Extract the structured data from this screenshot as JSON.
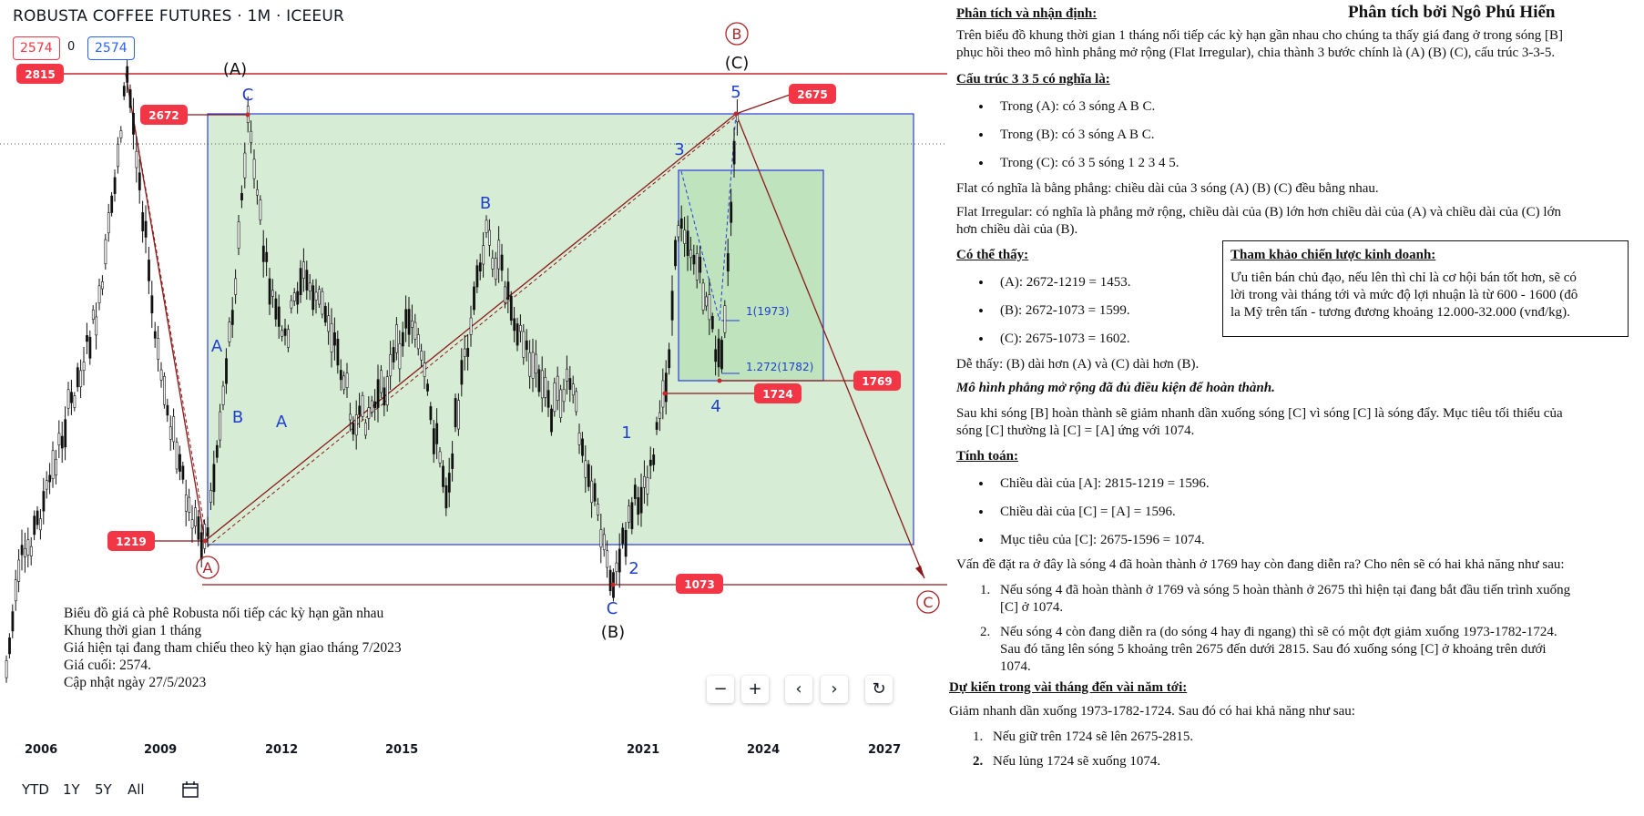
{
  "chart": {
    "symbol_title": "ROBUSTA COFFEE FUTURES · 1M · ICEEUR",
    "price_sell": "2574",
    "price_spread": "0",
    "price_buy": "2574",
    "colors": {
      "up": "#111111",
      "line": "#8b1a1a",
      "box": "#2b3bd9",
      "fill": "#d7ecd5",
      "fill2": "#bfe3bd",
      "label_bg": "#f23645",
      "wave_blue": "#1f3fcf"
    },
    "price_labels": [
      "2815",
      "2672",
      "2675",
      "1769",
      "1724",
      "1219",
      "1073"
    ],
    "wave_labels": {
      "A_top": "(A)",
      "C_top": "C",
      "B_mid": "B",
      "A_left": "A",
      "B_left": "B",
      "A_mid": "A",
      "circled_B": "B",
      "C_paren": "(C)",
      "w5": "5",
      "w3": "3",
      "w1": "1",
      "w2": "2",
      "w4": "4",
      "fib1": "1(1973)",
      "fib2": "1.272(1782)",
      "circled_A": "A",
      "C_bottom": "C",
      "B_bottom": "(B)",
      "circled_C": "C"
    },
    "note_lines": [
      "Biểu đồ giá cà phê Robusta nối tiếp các kỳ hạn gần nhau",
      "Khung thời gian 1 tháng",
      "Giá hiện tại đang tham chiếu theo kỳ hạn giao tháng 7/2023",
      "Giá cuối: 2574.",
      "Cập nhật ngày 27/5/2023"
    ],
    "x_axis": [
      "2006",
      "2009",
      "2012",
      "2015",
      "2021",
      "2024",
      "2027"
    ],
    "nav_buttons": [
      "−",
      "+",
      "‹",
      "›",
      "↻"
    ],
    "ranges": [
      "YTD",
      "1Y",
      "5Y",
      "All"
    ]
  },
  "analysis": {
    "author": "Phân tích bởi Ngô Phú Hiển",
    "h1": "Phân tích và nhận định:",
    "p1a": "Trên biểu đồ khung thời gian 1 tháng nối tiếp các kỳ hạn gần nhau cho chúng ta thấy giá đang ở trong sóng [B]",
    "p1b": "phục hồi theo mô hình phẳng mở rộng (Flat Irregular), chia thành 3 bước chính là (A) (B) (C), cấu trúc 3-3-5.",
    "h2": "Cấu trúc 3 3 5 có nghĩa là:",
    "s1": "Trong (A): có 3 sóng A B C.",
    "s2": "Trong (B): có 3 sóng A B C.",
    "s3": "Trong (C): có 3 5 sóng 1 2 3 4 5.",
    "p2": "Flat có nghĩa là bằng phẳng: chiều dài của 3 sóng (A) (B) (C) đều bằng nhau.",
    "p3a": "Flat Irregular: có nghĩa là phẳng mở rộng, chiều dài của (B) lớn hơn chiều dài của (A) và chiều dài của (C) lớn",
    "p3b": "hơn chiều dài của (B).",
    "h3": "Có thể thấy:",
    "c1": "(A): 2672-1219 = 1453.",
    "c2": "(B): 2672-1073 = 1599.",
    "c3": "(C): 2675-1073 = 1602.",
    "p4": "Dễ thấy: (B) dài hơn (A) và (C) dài hơn (B).",
    "p5": "Mô hình phẳng mở rộng đã đủ điều kiện để hoàn thành.",
    "p6a": "Sau khi sóng [B] hoàn thành sẽ giảm nhanh dần xuống sóng [C] vì sóng [C] là sóng đẩy. Mục tiêu tối thiểu của",
    "p6b": "sóng [C] thường là [C] = [A] ứng với  1074.",
    "h4": "Tính toán:",
    "t1": "Chiều dài của [A]: 2815-1219 = 1596.",
    "t2": "Chiều dài của [C] = [A] = 1596.",
    "t3": "Mục tiêu của [C]: 2675-1596 = 1074.",
    "p7": "Vấn đề đặt ra ở đây là sóng 4 đã hoàn thành ở 1769 hay còn đang diễn ra? Cho nên sẽ có hai khả năng như sau:",
    "n1a": "Nếu sóng 4 đã hoàn thành ở 1769 và sóng 5 hoàn thành ở 2675 thì hiện tại đang bắt đầu tiến trình xuống",
    "n1b": "[C] ở 1074.",
    "n2a": "Nếu sóng 4 còn đang diễn ra (do sóng 4 hay đi ngang) thì sẽ có một đợt giảm xuống 1973-1782-1724.",
    "n2b": "Sau đó tăng lên sóng 5 khoảng trên 2675 đến dưới 2815. Sau đó xuống sóng [C] ở khoảng trên dưới",
    "n2c": "1074.",
    "h5": "Dự kiến trong vài tháng đến vài năm tới:",
    "p8": "Giảm nhanh dần xuống 1973-1782-1724. Sau đó có hai khả năng như sau:",
    "f1": "Nếu giữ trên 1724 sẽ lên 2675-2815.",
    "f2": "Nếu lủng 1724 sẽ xuống 1074.",
    "strategy_title": "Tham khảo chiến lược kinh doanh:",
    "strategy_1": "Ưu tiên bán chủ đạo, nếu lên thì chỉ là cơ hội bán tốt hơn, sẽ có",
    "strategy_2": "lời trong vài tháng tới và mức độ lợi nhuận là từ 600 - 1600 (đô",
    "strategy_3": "la Mỹ trên tấn - tương đương khoảng 12.000-32.000 (vnđ/kg)."
  }
}
